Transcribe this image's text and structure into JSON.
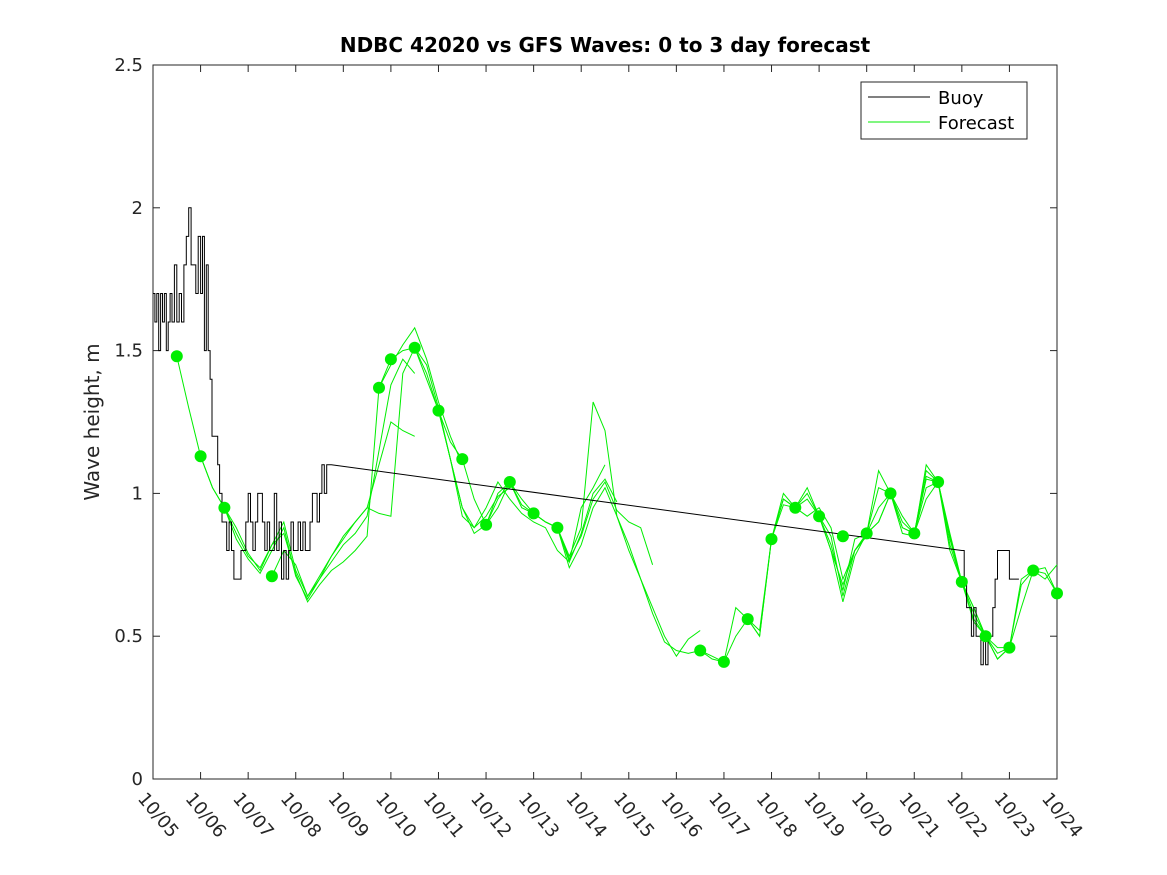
{
  "chart_data": {
    "type": "line",
    "title": "NDBC 42020 vs GFS Waves: 0 to 3 day forecast",
    "xlabel": "",
    "ylabel": "Wave height, m",
    "xlim": [
      0,
      19
    ],
    "ylim": [
      0,
      2.5
    ],
    "x_unit": "days since 10/05",
    "x_tick_labels": [
      "10/05",
      "10/06",
      "10/07",
      "10/08",
      "10/09",
      "10/10",
      "10/11",
      "10/12",
      "10/13",
      "10/14",
      "10/15",
      "10/16",
      "10/17",
      "10/18",
      "10/19",
      "10/20",
      "10/21",
      "10/22",
      "10/23",
      "10/24"
    ],
    "y_ticks": [
      0,
      0.5,
      1,
      1.5,
      2,
      2.5
    ],
    "y_tick_labels": [
      "0",
      "0.5",
      "1",
      "1.5",
      "2",
      "2.5"
    ],
    "legend": {
      "position": "top-right",
      "entries": [
        "Buoy",
        "Forecast"
      ]
    },
    "colors": {
      "buoy": "#000000",
      "forecast": "#00ee00",
      "axis": "#262626"
    },
    "series": [
      {
        "name": "Buoy",
        "x": [
          0,
          0.04,
          0.08,
          0.12,
          0.16,
          0.2,
          0.24,
          0.28,
          0.32,
          0.36,
          0.4,
          0.45,
          0.5,
          0.55,
          0.6,
          0.65,
          0.7,
          0.75,
          0.8,
          0.85,
          0.9,
          0.95,
          1.0,
          1.04,
          1.08,
          1.12,
          1.16,
          1.2,
          1.24,
          1.28,
          1.32,
          1.36,
          1.4,
          1.45,
          1.5,
          1.55,
          1.6,
          1.65,
          1.7,
          1.75,
          1.8,
          1.85,
          1.9,
          1.95,
          2.0,
          2.05,
          2.1,
          2.15,
          2.2,
          2.25,
          2.3,
          2.35,
          2.4,
          2.45,
          2.5,
          2.55,
          2.6,
          2.65,
          2.7,
          2.75,
          2.8,
          2.85,
          2.9,
          2.95,
          3.0,
          3.05,
          3.1,
          3.15,
          3.2,
          3.25,
          3.3,
          3.35,
          3.4,
          3.45,
          3.5,
          3.55,
          3.6,
          3.65,
          3.7,
          3.75,
          17.0,
          17.05,
          17.1,
          17.15,
          17.2,
          17.25,
          17.3,
          17.35,
          17.4,
          17.45,
          17.5,
          17.55,
          17.6,
          17.65,
          17.7,
          17.75,
          17.8,
          17.85,
          17.9,
          17.95,
          18.0,
          18.05,
          18.1,
          18.15,
          18.2
        ],
        "values": [
          1.7,
          1.6,
          1.7,
          1.5,
          1.7,
          1.6,
          1.7,
          1.5,
          1.6,
          1.7,
          1.6,
          1.8,
          1.6,
          1.7,
          1.6,
          1.8,
          1.9,
          2.0,
          1.8,
          1.8,
          1.7,
          1.9,
          1.7,
          1.9,
          1.5,
          1.8,
          1.5,
          1.4,
          1.2,
          1.2,
          1.2,
          1.1,
          1.0,
          0.9,
          0.9,
          0.8,
          0.9,
          0.8,
          0.7,
          0.7,
          0.7,
          0.8,
          0.8,
          0.9,
          1.0,
          0.9,
          0.8,
          0.9,
          1.0,
          1.0,
          0.9,
          0.8,
          0.9,
          0.8,
          0.8,
          1.0,
          0.8,
          0.9,
          0.7,
          0.8,
          0.7,
          0.8,
          0.9,
          0.8,
          0.8,
          0.9,
          0.8,
          0.9,
          0.8,
          0.8,
          0.9,
          1.0,
          1.0,
          0.9,
          1.0,
          1.1,
          1.0,
          1.1,
          1.1,
          1.1,
          0.8,
          0.7,
          0.6,
          0.6,
          0.5,
          0.6,
          0.5,
          0.5,
          0.4,
          0.5,
          0.4,
          0.5,
          0.5,
          0.6,
          0.7,
          0.8,
          0.8,
          0.8,
          0.8,
          0.8,
          0.7,
          0.7,
          0.7,
          0.7,
          0.7
        ]
      },
      {
        "name": "Forecast",
        "runs": [
          {
            "x": [
              0.5,
              0.75,
              1.0,
              1.25,
              1.5,
              1.75,
              2.0,
              2.25,
              2.5,
              2.75,
              3.0,
              3.25,
              3.5,
              3.75,
              4.0,
              4.25,
              4.5,
              4.75,
              5.0,
              5.25,
              5.5
            ],
            "values": [
              1.48,
              1.3,
              1.13,
              1.02,
              0.95,
              0.86,
              0.78,
              0.74,
              0.82,
              0.9,
              0.73,
              0.64,
              0.71,
              0.78,
              0.84,
              0.9,
              0.95,
              1.1,
              1.25,
              1.22,
              1.2
            ]
          },
          {
            "x": [
              1.0,
              1.25,
              1.5,
              1.75,
              2.0,
              2.25,
              2.5,
              2.75,
              3.0,
              3.25,
              3.5,
              3.75,
              4.0,
              4.25,
              4.5,
              4.75,
              5.0,
              5.25,
              5.5
            ],
            "values": [
              1.13,
              1.02,
              0.95,
              0.84,
              0.77,
              0.72,
              0.8,
              0.88,
              0.71,
              0.63,
              0.7,
              0.76,
              0.82,
              0.86,
              0.92,
              1.15,
              1.38,
              1.47,
              1.42
            ]
          },
          {
            "x": [
              1.5,
              1.75,
              2.0,
              2.25,
              2.5,
              2.75,
              3.0,
              3.25,
              3.5,
              3.75,
              4.0,
              4.25,
              4.5,
              4.75,
              5.0,
              5.25,
              5.5,
              5.75,
              6.0,
              6.25,
              6.5
            ],
            "values": [
              0.95,
              0.88,
              0.79,
              0.73,
              0.82,
              0.86,
              0.72,
              0.62,
              0.68,
              0.73,
              0.76,
              0.8,
              0.85,
              1.37,
              1.45,
              1.52,
              1.58,
              1.47,
              1.32,
              1.2,
              1.1
            ]
          },
          {
            "x": [
              2.5,
              2.75,
              3.0,
              3.25,
              3.5,
              3.75,
              4.0,
              4.25,
              4.5,
              4.75,
              5.0,
              5.25,
              5.5,
              5.75,
              6.0,
              6.25,
              6.5,
              6.75,
              7.0,
              7.25,
              7.5
            ],
            "values": [
              0.71,
              0.8,
              0.75,
              0.64,
              0.7,
              0.78,
              0.85,
              0.9,
              0.95,
              0.93,
              0.92,
              1.42,
              1.51,
              1.45,
              1.3,
              1.12,
              0.95,
              0.88,
              0.92,
              0.99,
              1.02
            ]
          },
          {
            "x": [
              4.75,
              5.0,
              5.25,
              5.5,
              5.75,
              6.0,
              6.25,
              6.5,
              6.75,
              7.0,
              7.25,
              7.5,
              7.75,
              8.0,
              8.25,
              8.5,
              8.75,
              9.0,
              9.25,
              9.5,
              9.75
            ],
            "values": [
              1.37,
              1.47,
              1.5,
              1.51,
              1.42,
              1.29,
              1.12,
              0.92,
              0.88,
              0.95,
              1.04,
              0.98,
              0.93,
              0.9,
              0.88,
              0.8,
              0.76,
              0.86,
              1.0,
              1.05,
              0.97
            ]
          },
          {
            "x": [
              5.5,
              5.75,
              6.0,
              6.25,
              6.5,
              6.75,
              7.0,
              7.25,
              7.5,
              7.75,
              8.0,
              8.25,
              8.5,
              8.75,
              9.0,
              9.25,
              9.5,
              9.75,
              10.0,
              10.25,
              10.5
            ],
            "values": [
              1.51,
              1.4,
              1.29,
              1.12,
              0.95,
              0.86,
              0.89,
              1.0,
              1.04,
              0.96,
              0.93,
              0.9,
              0.88,
              0.77,
              0.85,
              0.98,
              1.04,
              0.94,
              0.9,
              0.88,
              0.75
            ]
          },
          {
            "x": [
              6.0,
              6.25,
              6.5,
              6.75,
              7.0,
              7.25,
              7.5,
              7.75,
              8.0,
              8.25,
              8.5,
              8.75,
              9.0,
              9.25,
              9.5,
              9.75,
              10.0,
              10.25,
              10.5,
              10.75,
              11.0,
              11.25,
              11.5
            ],
            "values": [
              1.29,
              1.18,
              1.12,
              0.98,
              0.89,
              0.95,
              1.04,
              0.98,
              0.93,
              0.9,
              0.88,
              0.74,
              0.82,
              0.95,
              1.02,
              0.92,
              0.82,
              0.7,
              0.6,
              0.5,
              0.43,
              0.49,
              0.52
            ]
          },
          {
            "x": [
              7.0,
              7.25,
              7.5,
              7.75,
              8.0,
              8.25,
              8.5,
              8.75,
              9.0,
              9.25,
              9.5,
              9.75,
              10.0,
              10.25,
              10.5,
              10.75,
              11.0,
              11.25,
              11.5,
              11.75,
              12.0
            ],
            "values": [
              0.89,
              0.98,
              1.04,
              0.95,
              0.93,
              0.9,
              0.88,
              0.78,
              0.88,
              1.32,
              1.22,
              0.92,
              0.8,
              0.7,
              0.58,
              0.48,
              0.45,
              0.44,
              0.45,
              0.43,
              0.41
            ]
          },
          {
            "x": [
              8.0,
              8.25,
              8.5,
              8.75,
              9.0,
              9.25,
              9.5
            ],
            "values": [
              0.93,
              0.9,
              0.88,
              0.76,
              0.95,
              1.02,
              1.1
            ]
          },
          {
            "x": [
              11.5,
              11.75,
              12.0,
              12.25,
              12.5,
              12.75,
              13.0,
              13.25,
              13.5,
              13.75,
              14.0,
              14.25,
              14.5,
              14.75,
              15.0
            ],
            "values": [
              0.45,
              0.42,
              0.41,
              0.6,
              0.56,
              0.52,
              0.84,
              0.98,
              0.95,
              0.92,
              0.95,
              0.88,
              0.7,
              0.8,
              0.85
            ]
          },
          {
            "x": [
              12.0,
              12.25,
              12.5,
              12.75,
              13.0,
              13.25,
              13.5,
              13.75,
              14.0,
              14.25,
              14.5,
              14.75,
              15.0,
              15.25,
              15.5,
              15.75,
              16.0,
              16.25,
              16.5
            ],
            "values": [
              0.41,
              0.5,
              0.56,
              0.5,
              0.84,
              0.96,
              0.95,
              0.98,
              0.92,
              0.85,
              0.64,
              0.8,
              0.86,
              1.08,
              1.0,
              0.86,
              0.85,
              1.1,
              1.04
            ]
          },
          {
            "x": [
              12.5,
              12.75,
              13.0,
              13.25,
              13.5,
              13.75,
              14.0,
              14.25,
              14.5,
              14.75,
              15.0,
              15.25,
              15.5,
              15.75,
              16.0,
              16.25,
              16.5,
              16.75,
              17.0,
              17.25,
              17.5
            ],
            "values": [
              0.56,
              0.5,
              0.84,
              1.0,
              0.95,
              1.0,
              0.92,
              0.82,
              0.66,
              0.84,
              0.86,
              1.02,
              1.0,
              0.88,
              0.86,
              1.08,
              1.04,
              0.8,
              0.69,
              0.6,
              0.5
            ]
          },
          {
            "x": [
              13.0,
              13.25,
              13.5,
              13.75,
              14.0,
              14.25,
              14.5,
              14.75,
              15.0,
              15.25,
              15.5,
              15.75,
              16.0,
              16.25,
              16.5,
              16.75,
              17.0,
              17.25,
              17.5,
              17.75,
              18.0
            ],
            "values": [
              0.84,
              0.98,
              0.95,
              1.02,
              0.92,
              0.8,
              0.62,
              0.78,
              0.86,
              0.95,
              1.0,
              0.9,
              0.86,
              1.05,
              1.04,
              0.85,
              0.69,
              0.55,
              0.5,
              0.42,
              0.46
            ]
          },
          {
            "x": [
              14.0,
              14.25,
              14.5,
              14.75,
              15.0,
              15.25,
              15.5,
              15.75,
              16.0,
              16.25,
              16.5,
              16.75,
              17.0,
              17.25,
              17.5,
              17.75,
              18.0,
              18.25,
              18.5,
              18.75,
              19.0
            ],
            "values": [
              0.92,
              0.8,
              0.68,
              0.8,
              0.86,
              0.9,
              1.0,
              0.88,
              0.86,
              1.06,
              1.04,
              0.82,
              0.69,
              0.56,
              0.5,
              0.44,
              0.46,
              0.6,
              0.73,
              0.72,
              0.65
            ]
          },
          {
            "x": [
              15.0,
              15.25,
              15.5,
              15.75,
              16.0,
              16.25,
              16.5,
              16.75,
              17.0,
              17.25,
              17.5,
              17.75,
              18.0,
              18.25,
              18.5,
              18.75,
              19.0
            ],
            "values": [
              0.86,
              0.9,
              1.0,
              0.92,
              0.86,
              1.02,
              1.04,
              0.84,
              0.69,
              0.58,
              0.5,
              0.46,
              0.46,
              0.68,
              0.73,
              0.7,
              0.75
            ]
          },
          {
            "x": [
              16.0,
              16.25,
              16.5,
              16.75,
              17.0,
              17.25,
              17.5,
              17.75,
              18.0,
              18.25,
              18.5,
              18.75,
              19.0
            ],
            "values": [
              0.86,
              0.98,
              1.04,
              0.86,
              0.69,
              0.6,
              0.5,
              0.42,
              0.46,
              0.7,
              0.73,
              0.74,
              0.65
            ]
          }
        ],
        "markers": {
          "x": [
            0.5,
            1.0,
            1.5,
            2.5,
            4.75,
            5.0,
            5.5,
            6.0,
            6.5,
            7.0,
            7.5,
            8.0,
            8.5,
            11.5,
            12.0,
            12.5,
            13.0,
            13.5,
            14.0,
            14.5,
            15.0,
            15.5,
            16.0,
            16.5,
            17.0,
            17.5,
            18.0,
            18.5,
            19.0
          ],
          "values": [
            1.48,
            1.13,
            0.95,
            0.71,
            1.37,
            1.47,
            1.51,
            1.29,
            1.12,
            0.89,
            1.04,
            0.93,
            0.88,
            0.45,
            0.41,
            0.56,
            0.84,
            0.95,
            0.92,
            0.85,
            0.86,
            1.0,
            0.86,
            1.04,
            0.69,
            0.5,
            0.46,
            0.73,
            0.65
          ]
        }
      }
    ]
  }
}
